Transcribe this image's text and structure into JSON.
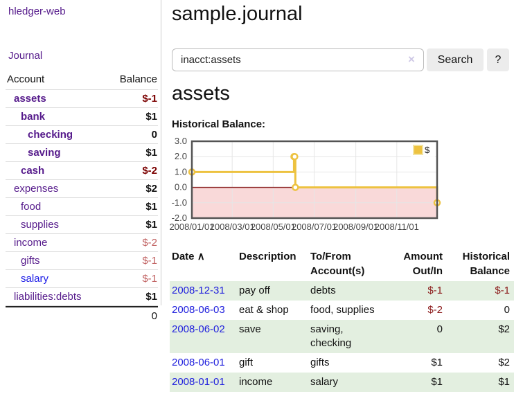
{
  "colors": {
    "link_purple": "#551A8B",
    "link_blue": "#1A1AE6",
    "negative_strong": "#7B0000",
    "negative_soft": "#C06060",
    "register_negative": "#8B1A1A",
    "stripe_green": "#e3efe0",
    "chart_line_gold": "#EDC240"
  },
  "sidebar": {
    "app_title": "hledger-web",
    "nav": {
      "journal": "Journal"
    },
    "accounts_header": {
      "account": "Account",
      "balance": "Balance"
    },
    "accounts": [
      {
        "name": "assets",
        "balance": "$-1"
      },
      {
        "name": "bank",
        "balance": "$1"
      },
      {
        "name": "checking",
        "balance": "0"
      },
      {
        "name": "saving",
        "balance": "$1"
      },
      {
        "name": "cash",
        "balance": "$-2"
      },
      {
        "name": "expenses",
        "balance": "$2"
      },
      {
        "name": "food",
        "balance": "$1"
      },
      {
        "name": "supplies",
        "balance": "$1"
      },
      {
        "name": "income",
        "balance": "$-2"
      },
      {
        "name": "gifts",
        "balance": "$-1"
      },
      {
        "name": "salary",
        "balance": "$-1"
      },
      {
        "name": "liabilities:debts",
        "balance": "$1"
      }
    ],
    "total": "0"
  },
  "main": {
    "title": "sample.journal",
    "search": {
      "value": "inacct:assets",
      "clear_icon": "×",
      "button_label": "Search",
      "help_label": "?"
    },
    "section_title": "assets",
    "chart_label": "Historical Balance:"
  },
  "chart_data": {
    "type": "line",
    "step": true,
    "title": "Historical Balance",
    "series": [
      {
        "name": "$",
        "color": "#EDC240",
        "points": [
          [
            "2008-01-01",
            1
          ],
          [
            "2008-06-01",
            2
          ],
          [
            "2008-06-02",
            2
          ],
          [
            "2008-06-03",
            0
          ],
          [
            "2008-12-31",
            -1
          ]
        ]
      }
    ],
    "xlim": [
      "2008-01-01",
      "2008-12-31"
    ],
    "ylim": [
      -2,
      3
    ],
    "x_ticks": [
      "2008/01/01",
      "2008/03/01",
      "2008/05/01",
      "2008/07/01",
      "2008/09/01",
      "2008/11/01"
    ],
    "y_ticks": [
      "3.0",
      "2.0",
      "1.0",
      "0.0",
      "-1.0",
      "-2.0"
    ],
    "legend": {
      "label": "$",
      "position": "top-right"
    },
    "grid": true,
    "negative_region_color": "#F9D9D9",
    "zero_line_color": "#8B2222",
    "border_color": "#545454"
  },
  "register": {
    "headers": {
      "date": "Date",
      "sort_indicator": "∧",
      "description": "Description",
      "account": "To/From Account(s)",
      "amount": "Amount Out/In",
      "balance": "Historical Balance"
    },
    "rows": [
      {
        "date": "2008-12-31",
        "description": "pay off",
        "accounts": "debts",
        "amount": "$-1",
        "balance": "$-1"
      },
      {
        "date": "2008-06-03",
        "description": "eat & shop",
        "accounts": "food, supplies",
        "amount": "$-2",
        "balance": "0"
      },
      {
        "date": "2008-06-02",
        "description": "save",
        "accounts": "saving, checking",
        "amount": "0",
        "balance": "$2"
      },
      {
        "date": "2008-06-01",
        "description": "gift",
        "accounts": "gifts",
        "amount": "$1",
        "balance": "$2"
      },
      {
        "date": "2008-01-01",
        "description": "income",
        "accounts": "salary",
        "amount": "$1",
        "balance": "$1"
      }
    ]
  }
}
